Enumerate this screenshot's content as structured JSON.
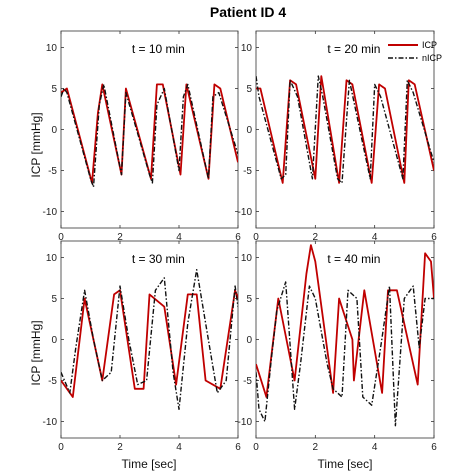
{
  "figure": {
    "title": "Patient ID 4",
    "xlabel": "Time [sec]",
    "ylabel": "ICP [mmHg]",
    "legend": {
      "position": "top-right",
      "entries": [
        "ICP",
        "nICP"
      ]
    }
  },
  "colors": {
    "icp": "#c00000",
    "nicp": "#111111"
  },
  "chart_data": [
    {
      "type": "line",
      "title": "t = 10 min",
      "xlim": [
        0,
        6
      ],
      "ylim": [
        -12,
        12
      ],
      "xticks": [
        0,
        2,
        4,
        6
      ],
      "yticks": [
        -10,
        -5,
        0,
        5,
        10
      ],
      "series": [
        {
          "name": "ICP",
          "style": "solid",
          "x": [
            0,
            0.2,
            1.05,
            1.25,
            1.4,
            2.05,
            2.2,
            3.05,
            3.25,
            3.45,
            4.05,
            4.25,
            5.0,
            5.2,
            5.4,
            6.0
          ],
          "y": [
            4.5,
            5,
            -6.5,
            2,
            5.5,
            -5.5,
            5,
            -6,
            5.5,
            5.5,
            -5.5,
            5.5,
            -6,
            5.5,
            5,
            -4
          ]
        },
        {
          "name": "nICP",
          "style": "dashdot",
          "x": [
            0,
            0.1,
            0.2,
            1.0,
            1.1,
            1.3,
            1.45,
            2.05,
            2.2,
            3.0,
            3.1,
            3.25,
            3.5,
            4.0,
            4.15,
            4.3,
            5.0,
            5.15,
            5.35,
            6.0
          ],
          "y": [
            4,
            5,
            4.5,
            -6,
            -7,
            3,
            5.5,
            -5.5,
            4.5,
            -5.5,
            -6.5,
            3,
            5,
            -5,
            4,
            5.5,
            -6,
            4,
            4.5,
            -3
          ]
        }
      ]
    },
    {
      "type": "line",
      "title": "t = 20 min",
      "xlim": [
        0,
        6
      ],
      "ylim": [
        -12,
        12
      ],
      "xticks": [
        0,
        2,
        4,
        6
      ],
      "yticks": [
        -10,
        -5,
        0,
        5,
        10
      ],
      "series": [
        {
          "name": "ICP",
          "style": "solid",
          "x": [
            0,
            0.15,
            0.9,
            1.15,
            1.35,
            2.0,
            2.2,
            2.8,
            3.05,
            3.25,
            3.9,
            4.15,
            4.35,
            5.0,
            5.15,
            5.35,
            6.0
          ],
          "y": [
            5,
            5,
            -6.5,
            6,
            5.5,
            -6,
            6.5,
            -6.5,
            6,
            5.5,
            -6.5,
            5.5,
            5,
            -6.5,
            6,
            5.5,
            -5
          ]
        },
        {
          "name": "nICP",
          "style": "dashdot",
          "x": [
            0,
            0.1,
            0.85,
            1.0,
            1.15,
            1.4,
            1.9,
            2.1,
            2.25,
            2.75,
            2.9,
            3.15,
            3.85,
            4.0,
            4.2,
            4.95,
            5.1,
            5.3,
            6.0
          ],
          "y": [
            6.5,
            4,
            -6,
            -5.5,
            6,
            4,
            -6,
            6.5,
            4,
            -6,
            -6.5,
            6,
            -6,
            5.5,
            4,
            -6,
            6,
            4.5,
            -4
          ]
        }
      ]
    },
    {
      "type": "line",
      "title": "t = 30 min",
      "xlim": [
        0,
        6
      ],
      "ylim": [
        -12,
        12
      ],
      "xticks": [
        0,
        2,
        4,
        6
      ],
      "yticks": [
        -10,
        -5,
        0,
        5,
        10
      ],
      "series": [
        {
          "name": "ICP",
          "style": "solid",
          "x": [
            0,
            0.4,
            0.8,
            1.4,
            1.8,
            2.0,
            2.5,
            2.8,
            3.0,
            3.5,
            3.9,
            4.3,
            4.6,
            4.9,
            5.4,
            5.9,
            6.0
          ],
          "y": [
            -5,
            -7,
            5,
            -5,
            5.5,
            6,
            -6,
            -6,
            5.5,
            4,
            -5.5,
            5.5,
            5.5,
            -5,
            -6,
            6,
            5
          ]
        },
        {
          "name": "nICP",
          "style": "dashdot",
          "x": [
            0,
            0.3,
            0.5,
            0.8,
            1.1,
            1.4,
            1.7,
            2.0,
            2.3,
            2.6,
            2.9,
            3.2,
            3.5,
            3.8,
            4.0,
            4.3,
            4.6,
            4.9,
            5.3,
            5.6,
            5.9,
            6.0
          ],
          "y": [
            -4,
            -6.5,
            -1,
            6,
            0,
            -5,
            -4,
            6.5,
            0,
            -5.5,
            -5,
            6,
            7.5,
            -4,
            -8.5,
            2,
            8.5,
            2,
            -6.5,
            -5,
            6.5,
            4
          ]
        }
      ]
    },
    {
      "type": "line",
      "title": "t = 40 min",
      "xlim": [
        0,
        6
      ],
      "ylim": [
        -12,
        12
      ],
      "xticks": [
        0,
        2,
        4,
        6
      ],
      "yticks": [
        -10,
        -5,
        0,
        5,
        10
      ],
      "series": [
        {
          "name": "ICP",
          "style": "solid",
          "x": [
            0,
            0.35,
            0.75,
            1.3,
            1.7,
            1.85,
            2.0,
            2.6,
            2.8,
            3.25,
            3.3,
            3.65,
            4.25,
            4.45,
            4.75,
            5.45,
            5.7,
            5.9,
            6.0
          ],
          "y": [
            -3,
            -7,
            5,
            -5,
            8,
            11.5,
            9.5,
            -6.5,
            5,
            0,
            -5,
            6,
            -6.5,
            6,
            6,
            -5.5,
            10.5,
            9.5,
            5
          ]
        },
        {
          "name": "nICP",
          "style": "dashdot",
          "x": [
            0,
            0.1,
            0.3,
            0.5,
            0.7,
            1.0,
            1.3,
            1.5,
            1.8,
            2.0,
            2.4,
            2.6,
            2.9,
            3.1,
            3.4,
            3.6,
            3.9,
            4.2,
            4.5,
            4.7,
            5.0,
            5.3,
            5.5,
            5.7,
            6.0
          ],
          "y": [
            -4,
            -8.5,
            -10,
            -3,
            3.5,
            7,
            -8.5,
            -3,
            6.5,
            5,
            -3,
            -6,
            -7,
            6,
            5,
            -7,
            -8,
            -1,
            6.5,
            -10.5,
            5,
            6.5,
            -1,
            5,
            5
          ]
        }
      ]
    }
  ]
}
